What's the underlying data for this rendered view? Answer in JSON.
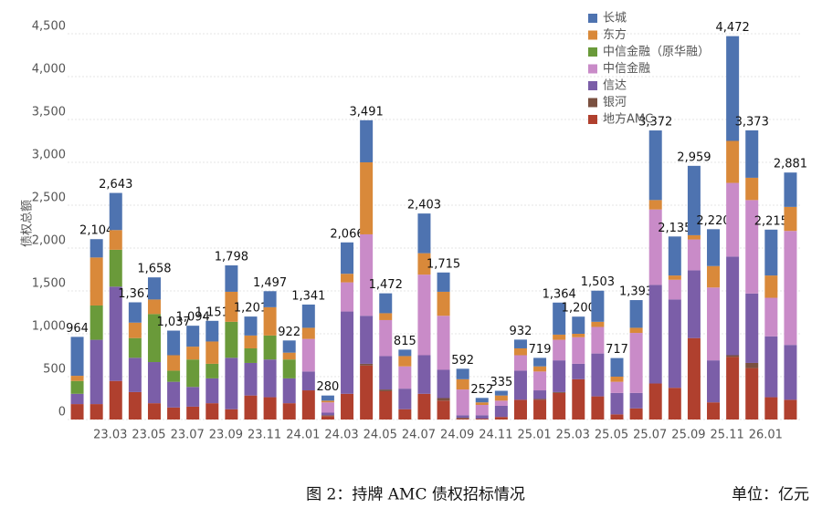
{
  "chart_data": {
    "type": "stacked_bar",
    "y_label": "债权总额",
    "categories": [
      null,
      null,
      "23.03",
      null,
      "23.05",
      null,
      "23.07",
      null,
      "23.09",
      null,
      "23.11",
      null,
      "24.01",
      null,
      "24.03",
      null,
      "24.05",
      null,
      "24.07",
      null,
      "24.09",
      null,
      "24.11",
      null,
      "25.01",
      null,
      "25.03",
      null,
      "25.05",
      null,
      "25.07",
      null,
      "25.09",
      null,
      "25.11",
      null,
      "26.01",
      null
    ],
    "series": [
      {
        "name": "长城",
        "color": "#4e73b0",
        "values": [
          454,
          214,
          433,
          237,
          258,
          287,
          244,
          241,
          308,
          221,
          187,
          142,
          271,
          60,
          366,
          491,
          232,
          75,
          463,
          225,
          122,
          52,
          55,
          102,
          99,
          374,
          200,
          363,
          217,
          323,
          812,
          455,
          809,
          430,
          1222,
          553,
          535,
          401
        ]
      },
      {
        "name": "东方",
        "color": "#d9893a",
        "values": [
          60,
          560,
          230,
          180,
          170,
          180,
          150,
          260,
          350,
          150,
          330,
          80,
          130,
          20,
          100,
          840,
          80,
          120,
          250,
          280,
          120,
          30,
          60,
          80,
          60,
          60,
          40,
          60,
          60,
          60,
          110,
          50,
          50,
          250,
          490,
          260,
          260,
          280
        ]
      },
      {
        "name": "中信金融（原华融）",
        "color": "#6a9a3a",
        "values": [
          150,
          400,
          430,
          230,
          560,
          130,
          320,
          170,
          420,
          170,
          280,
          220,
          0,
          0,
          0,
          0,
          0,
          0,
          0,
          0,
          0,
          0,
          0,
          0,
          0,
          0,
          0,
          0,
          0,
          0,
          0,
          0,
          0,
          0,
          0,
          0,
          0,
          0
        ]
      },
      {
        "name": "中信金融",
        "color": "#c98bc8",
        "values": [
          0,
          0,
          0,
          0,
          0,
          0,
          0,
          0,
          0,
          0,
          0,
          0,
          380,
          120,
          340,
          950,
          420,
          260,
          940,
          630,
          300,
          120,
          60,
          180,
          220,
          240,
          310,
          310,
          130,
          700,
          880,
          230,
          360,
          850,
          860,
          1090,
          450,
          1330
        ]
      },
      {
        "name": "信达",
        "color": "#7b5ea8",
        "values": [
          120,
          750,
          1100,
          400,
          480,
          300,
          230,
          290,
          600,
          380,
          440,
          290,
          220,
          30,
          960,
          560,
          390,
          240,
          450,
          330,
          30,
          40,
          130,
          340,
          100,
          370,
          180,
          500,
          250,
          180,
          1150,
          1030,
          790,
          490,
          1150,
          810,
          710,
          640
        ]
      },
      {
        "name": "银河",
        "color": "#7a5040",
        "values": [
          0,
          0,
          0,
          0,
          0,
          0,
          0,
          0,
          0,
          0,
          0,
          0,
          0,
          10,
          0,
          20,
          20,
          0,
          0,
          30,
          10,
          0,
          0,
          0,
          10,
          10,
          0,
          0,
          0,
          0,
          0,
          0,
          0,
          0,
          20,
          60,
          0,
          0
        ]
      },
      {
        "name": "地方AMC",
        "color": "#b0402e",
        "values": [
          180,
          180,
          450,
          320,
          190,
          140,
          150,
          190,
          120,
          280,
          260,
          190,
          340,
          40,
          300,
          630,
          330,
          120,
          300,
          220,
          10,
          10,
          30,
          230,
          230,
          310,
          470,
          270,
          60,
          130,
          420,
          370,
          950,
          200,
          730,
          600,
          260,
          230
        ]
      }
    ],
    "totals": [
      964,
      2104,
      2643,
      1367,
      1658,
      1037,
      1094,
      1151,
      1798,
      1201,
      1497,
      922,
      1341,
      280,
      2066,
      3491,
      1472,
      815,
      2403,
      1715,
      592,
      252,
      335,
      932,
      719,
      1364,
      1200,
      1503,
      717,
      1393,
      3372,
      2135,
      2959,
      2220,
      4472,
      3373,
      2215,
      2881
    ],
    "total_labels": [
      "964",
      "2,104",
      "2,643",
      "1,367",
      "1,658",
      "1,037",
      "1,094",
      "1,151",
      "1,798",
      "1,201",
      "1,497",
      "922",
      "1,341",
      "280",
      "2,066",
      "3,491",
      "1,472",
      "815",
      "2,403",
      "1,715",
      "592",
      "252",
      "335",
      "932",
      "719",
      "1,364",
      "1,200",
      "1,503",
      "717",
      "1,393",
      "3,372",
      "2,135",
      "2,959",
      "2,220",
      "4,472",
      "3,373",
      "2,215",
      "2,881"
    ],
    "ylim": [
      0,
      4500
    ],
    "yticks": [
      0,
      500,
      {
        "value": 1000,
        "label": "1,000"
      },
      {
        "value": 1500,
        "label": "1,500"
      },
      {
        "value": 2000,
        "label": "2,000"
      },
      {
        "value": 2500,
        "label": "2,500"
      },
      {
        "value": 3000,
        "label": "3,000"
      },
      {
        "value": 3500,
        "label": "3,500"
      },
      {
        "value": 4000,
        "label": "4,000"
      },
      {
        "value": 4500,
        "label": "4,500"
      }
    ],
    "grid": true,
    "legend": "top-right"
  },
  "caption": {
    "title": "图 2：持牌 AMC 债权招标情况",
    "unit": "单位：亿元"
  }
}
